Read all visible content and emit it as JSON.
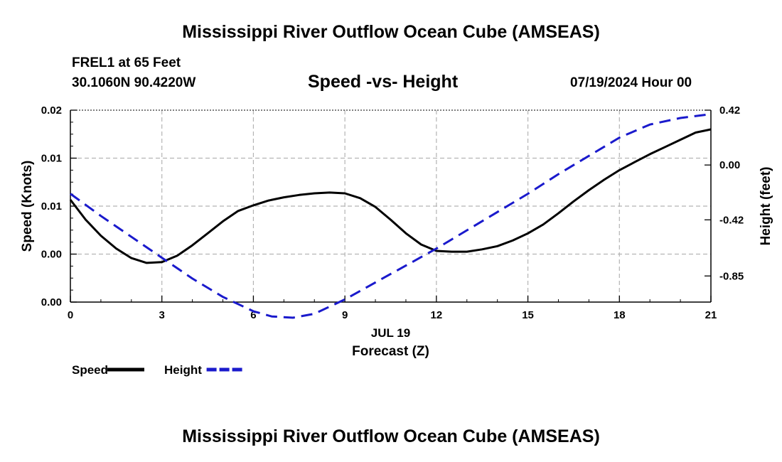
{
  "page": {
    "title": "Mississippi River Outflow Ocean Cube (AMSEAS)",
    "station": "FREL1 at 65 Feet",
    "coords": "30.1060N  90.4220W",
    "subtitle": "Speed -vs- Height",
    "date": "07/19/2024 Hour 00",
    "footer_title": "Mississippi River Outflow Ocean Cube (AMSEAS)"
  },
  "chart_data": {
    "type": "line",
    "title": "Speed -vs- Height",
    "xlabel": "Forecast (Z)",
    "xlabel_date": "JUL 19",
    "ylabel": "Speed (Knots)",
    "ylabel_right": "Height (feet)",
    "xlim": [
      0,
      21
    ],
    "ylim": [
      0,
      0.024
    ],
    "ylim_right": [
      -1.05,
      0.42
    ],
    "x_ticks": [
      0,
      3,
      6,
      9,
      12,
      15,
      18,
      21
    ],
    "x_tick_labels": [
      "0",
      "3",
      "6",
      "9",
      "12",
      "15",
      "18",
      "21"
    ],
    "y_ticks": [
      0,
      0.006,
      0.012,
      0.018,
      0.024
    ],
    "y_tick_labels": [
      "0.00",
      "0.00",
      "0.01",
      "0.01",
      "0.02"
    ],
    "y_right_ticks": [
      0.42,
      0.0,
      -0.42,
      -0.85
    ],
    "y_right_tick_labels": [
      "0.42",
      "0.00",
      "-0.42",
      "-0.85"
    ],
    "grid": true,
    "series": [
      {
        "name": "Speed",
        "axis": "left",
        "color": "#000000",
        "dash": "solid",
        "x": [
          0,
          0.5,
          1,
          1.5,
          2,
          2.5,
          3,
          3.5,
          4,
          4.5,
          5,
          5.5,
          6,
          6.5,
          7,
          7.5,
          8,
          8.5,
          9,
          9.5,
          10,
          10.5,
          11,
          11.5,
          12,
          12.5,
          13,
          13.5,
          14,
          14.5,
          15,
          15.5,
          16,
          16.5,
          17,
          17.5,
          18,
          18.5,
          19,
          19.5,
          20,
          20.5,
          21
        ],
        "values": [
          0.0128,
          0.0103,
          0.0083,
          0.0067,
          0.0055,
          0.0049,
          0.005,
          0.0058,
          0.0071,
          0.0086,
          0.0101,
          0.0114,
          0.0121,
          0.0127,
          0.0131,
          0.0134,
          0.0136,
          0.0137,
          0.0136,
          0.013,
          0.0119,
          0.0103,
          0.0086,
          0.0072,
          0.0064,
          0.0063,
          0.0063,
          0.0066,
          0.007,
          0.0077,
          0.0086,
          0.0097,
          0.0111,
          0.0126,
          0.014,
          0.0153,
          0.0165,
          0.0175,
          0.0185,
          0.0194,
          0.0203,
          0.0212,
          0.0216
        ]
      },
      {
        "name": "Height",
        "axis": "right",
        "color": "#1a1acc",
        "dash": "dashed",
        "x": [
          0,
          1,
          2,
          3,
          4,
          5,
          6,
          6.6,
          7.3,
          8,
          9,
          10,
          11,
          12,
          13,
          14,
          15,
          16,
          17,
          18,
          19,
          20,
          21
        ],
        "values": [
          -0.22,
          -0.39,
          -0.55,
          -0.71,
          -0.87,
          -1.01,
          -1.12,
          -1.16,
          -1.17,
          -1.14,
          -1.03,
          -0.9,
          -0.77,
          -0.64,
          -0.5,
          -0.36,
          -0.22,
          -0.07,
          0.07,
          0.21,
          0.31,
          0.36,
          0.39
        ]
      }
    ],
    "legend": [
      {
        "label": "Speed",
        "color": "#000000",
        "dash": "solid"
      },
      {
        "label": "Height",
        "color": "#1a1acc",
        "dash": "dashed"
      }
    ],
    "legend_position": "bottom-left"
  }
}
